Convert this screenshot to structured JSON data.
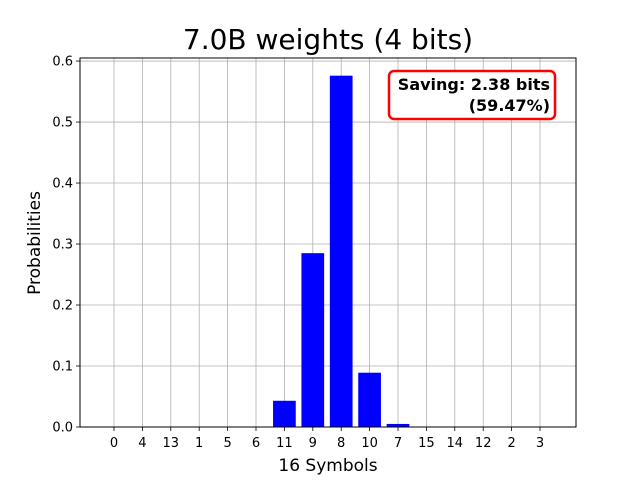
{
  "chart_data": {
    "type": "bar",
    "title": "7.0B weights (4 bits)",
    "xlabel": "16 Symbols",
    "ylabel": "Probabilities",
    "categories": [
      "0",
      "4",
      "13",
      "1",
      "5",
      "6",
      "11",
      "9",
      "8",
      "10",
      "7",
      "15",
      "14",
      "12",
      "2",
      "3"
    ],
    "values": [
      0,
      0,
      0,
      0,
      0,
      0,
      0.043,
      0.285,
      0.576,
      0.089,
      0.005,
      0,
      0,
      0,
      0,
      0
    ],
    "ylim": [
      0,
      0.605
    ],
    "yticks": [
      "0.0",
      "0.1",
      "0.2",
      "0.3",
      "0.4",
      "0.5",
      "0.6"
    ],
    "grid": true,
    "bar_color": "#0000ff",
    "annotation": {
      "line1": "Saving: 2.38 bits",
      "line2": "(59.47%)",
      "border_color": "#ff0000"
    }
  }
}
